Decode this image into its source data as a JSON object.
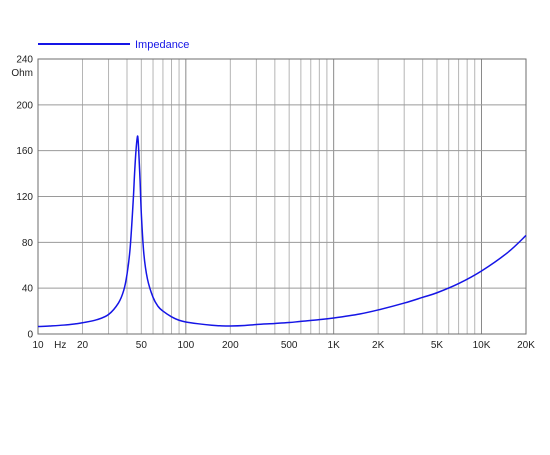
{
  "chart_data": {
    "type": "line",
    "title": "",
    "xlabel": "Hz",
    "ylabel": "Ohm",
    "x_scale": "log",
    "xlim": [
      10,
      20000
    ],
    "ylim": [
      0,
      240
    ],
    "grid": true,
    "legend_position": "top-left",
    "x_ticks": [
      {
        "value": 10,
        "label": "10"
      },
      {
        "value": 20,
        "label": "20"
      },
      {
        "value": 50,
        "label": "50"
      },
      {
        "value": 100,
        "label": "100"
      },
      {
        "value": 200,
        "label": "200"
      },
      {
        "value": 500,
        "label": "500"
      },
      {
        "value": 1000,
        "label": "1K"
      },
      {
        "value": 2000,
        "label": "2K"
      },
      {
        "value": 5000,
        "label": "5K"
      },
      {
        "value": 10000,
        "label": "10K"
      },
      {
        "value": 20000,
        "label": "20K"
      }
    ],
    "y_ticks": [
      {
        "value": 0,
        "label": "0"
      },
      {
        "value": 40,
        "label": "40"
      },
      {
        "value": 80,
        "label": "80"
      },
      {
        "value": 120,
        "label": "120"
      },
      {
        "value": 160,
        "label": "160"
      },
      {
        "value": 200,
        "label": "200"
      },
      {
        "value": 240,
        "label": "240"
      }
    ],
    "series": [
      {
        "name": "Impedance",
        "color": "#1515e6",
        "points": [
          [
            10,
            6.5
          ],
          [
            12,
            7.0
          ],
          [
            15,
            7.8
          ],
          [
            18,
            8.9
          ],
          [
            20,
            9.8
          ],
          [
            25,
            12.5
          ],
          [
            30,
            17
          ],
          [
            35,
            27
          ],
          [
            38,
            38
          ],
          [
            40,
            52
          ],
          [
            42,
            75
          ],
          [
            44,
            115
          ],
          [
            45,
            140
          ],
          [
            46,
            160
          ],
          [
            47,
            172
          ],
          [
            47.5,
            170
          ],
          [
            48,
            160
          ],
          [
            49,
            135
          ],
          [
            50,
            105
          ],
          [
            52,
            70
          ],
          [
            55,
            48
          ],
          [
            60,
            32
          ],
          [
            65,
            24
          ],
          [
            70,
            20
          ],
          [
            80,
            15
          ],
          [
            90,
            12
          ],
          [
            100,
            10.5
          ],
          [
            120,
            9
          ],
          [
            150,
            7.6
          ],
          [
            170,
            7.2
          ],
          [
            200,
            7.0
          ],
          [
            250,
            7.4
          ],
          [
            300,
            8.3
          ],
          [
            400,
            9.2
          ],
          [
            500,
            10.0
          ],
          [
            600,
            11.0
          ],
          [
            800,
            12.5
          ],
          [
            1000,
            14.0
          ],
          [
            1500,
            17.5
          ],
          [
            2000,
            21
          ],
          [
            3000,
            27
          ],
          [
            4000,
            32
          ],
          [
            5000,
            36
          ],
          [
            7000,
            44
          ],
          [
            10000,
            55
          ],
          [
            15000,
            71
          ],
          [
            20000,
            86
          ]
        ]
      }
    ]
  }
}
